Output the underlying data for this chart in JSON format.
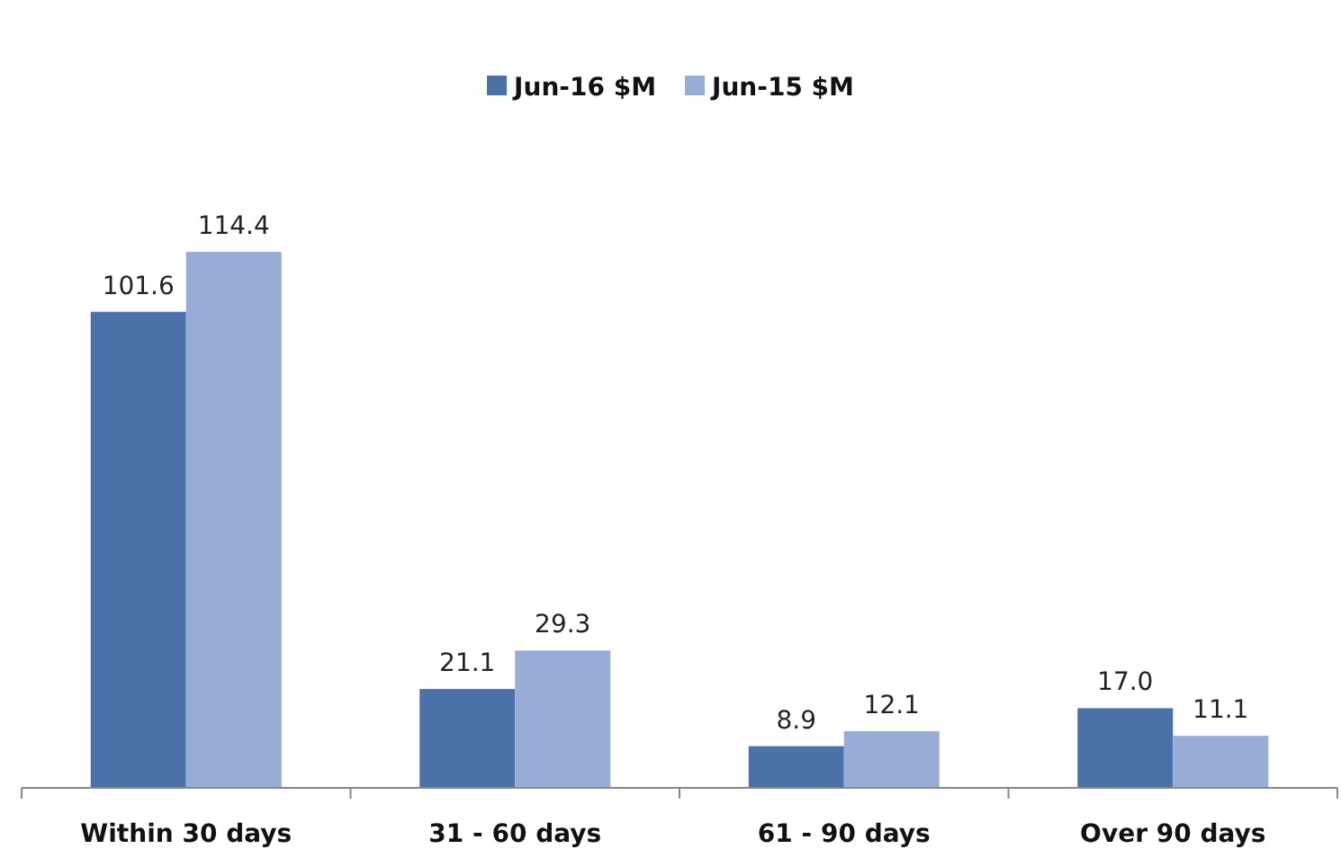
{
  "chart_data": {
    "type": "bar",
    "categories": [
      "Within 30 days",
      "31 - 60 days",
      "61 - 90 days",
      "Over 90 days"
    ],
    "series": [
      {
        "name": "Jun-16 $M",
        "color": "#4a72a8",
        "values": [
          101.6,
          21.1,
          8.9,
          17.0
        ],
        "value_labels": [
          "101.6",
          "21.1",
          "8.9",
          "17.0"
        ]
      },
      {
        "name": "Jun-15 $M",
        "color": "#98add6",
        "values": [
          114.4,
          29.3,
          12.1,
          11.1
        ],
        "value_labels": [
          "114.4",
          "29.3",
          "12.1",
          "11.1"
        ]
      }
    ],
    "legend": "top",
    "grid": false
  }
}
